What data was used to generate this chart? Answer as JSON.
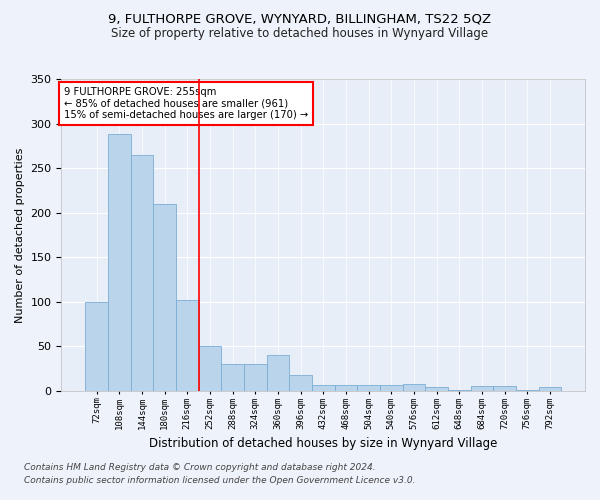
{
  "title": "9, FULTHORPE GROVE, WYNYARD, BILLINGHAM, TS22 5QZ",
  "subtitle": "Size of property relative to detached houses in Wynyard Village",
  "xlabel": "Distribution of detached houses by size in Wynyard Village",
  "ylabel": "Number of detached properties",
  "bar_color": "#bad4ec",
  "bar_edge_color": "#7aadd4",
  "background_color": "#e8eef8",
  "grid_color": "#ffffff",
  "fig_background": "#eef2fa",
  "categories": [
    "72sqm",
    "108sqm",
    "144sqm",
    "180sqm",
    "216sqm",
    "252sqm",
    "288sqm",
    "324sqm",
    "360sqm",
    "396sqm",
    "432sqm",
    "468sqm",
    "504sqm",
    "540sqm",
    "576sqm",
    "612sqm",
    "648sqm",
    "684sqm",
    "720sqm",
    "756sqm",
    "792sqm"
  ],
  "values": [
    100,
    288,
    265,
    210,
    102,
    50,
    30,
    30,
    40,
    18,
    7,
    7,
    7,
    7,
    8,
    4,
    1,
    6,
    6,
    1,
    4
  ],
  "red_line_index": 5,
  "annotation_line1": "9 FULTHORPE GROVE: 255sqm",
  "annotation_line2": "← 85% of detached houses are smaller (961)",
  "annotation_line3": "15% of semi-detached houses are larger (170) →",
  "ylim": [
    0,
    350
  ],
  "yticks": [
    0,
    50,
    100,
    150,
    200,
    250,
    300,
    350
  ],
  "footnote1": "Contains HM Land Registry data © Crown copyright and database right 2024.",
  "footnote2": "Contains public sector information licensed under the Open Government Licence v3.0."
}
